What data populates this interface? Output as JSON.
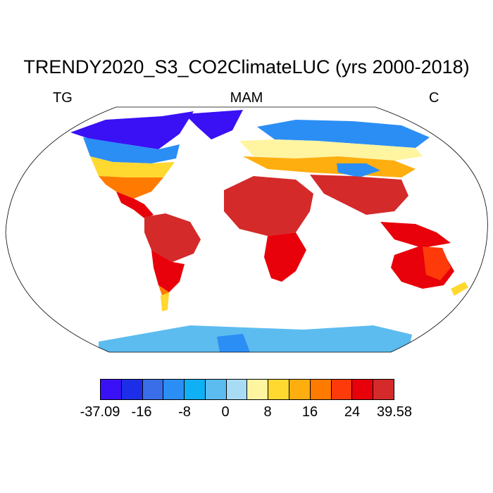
{
  "title": "TRENDY2020_S3_CO2ClimateLUC (yrs 2000-2018)",
  "left_label": "TG",
  "center_label": "MAM",
  "right_label": "C",
  "colorbar": {
    "colors": [
      "#3a10f5",
      "#1c2ee8",
      "#3a6ee8",
      "#2b8ef5",
      "#10b0f5",
      "#5cbcf0",
      "#a8dcf5",
      "#fff5a0",
      "#ffd830",
      "#ffae10",
      "#ff7a00",
      "#ff3a0a",
      "#e8000a",
      "#d42a2a"
    ],
    "labels": [
      "-37.09",
      "-16",
      "-8",
      "0",
      "8",
      "16",
      "24",
      "39.58"
    ]
  }
}
